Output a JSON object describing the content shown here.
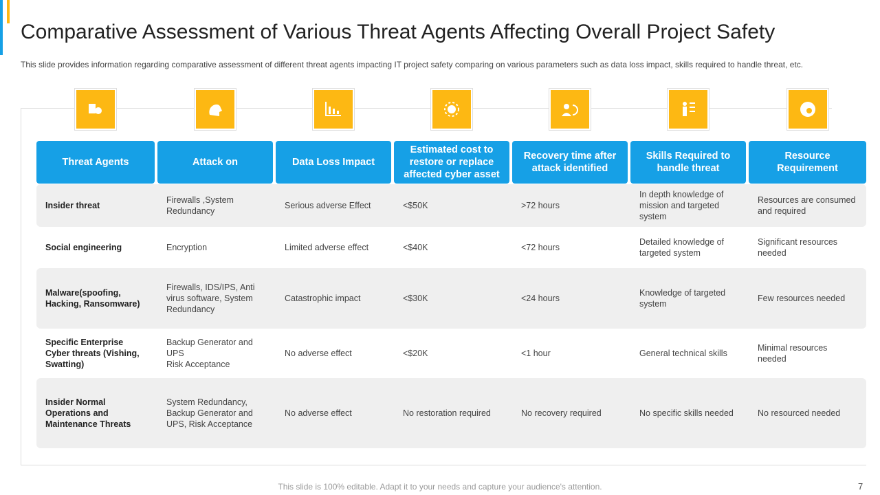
{
  "header": {
    "title": "Comparative Assessment of Various Threat Agents Affecting Overall Project Safety",
    "subtitle": "This slide provides information regarding comparative assessment of different threat agents impacting IT project safety comparing on various parameters such as data loss impact, skills required to handle threat, etc."
  },
  "table": {
    "columns": [
      "Threat Agents",
      "Attack on",
      "Data Loss Impact",
      "Estimated cost to restore or replace affected cyber asset",
      "Recovery time after attack identified",
      "Skills Required to handle threat",
      "Resource Requirement"
    ],
    "rows": [
      [
        "Insider threat",
        "Firewalls ,System Redundancy",
        "Serious adverse  Effect",
        "<$50K",
        ">72 hours",
        "In depth knowledge of mission and targeted system",
        "Resources are consumed and required"
      ],
      [
        "Social engineering",
        "Encryption",
        "Limited adverse  effect",
        "<$40K",
        "<72 hours",
        "Detailed knowledge of targeted system",
        "Significant resources needed"
      ],
      [
        "Malware(spoofing, Hacking, Ransomware)",
        "Firewalls, IDS/IPS, Anti virus software, System Redundancy",
        "Catastrophic impact",
        "<$30K",
        "<24 hours",
        "Knowledge of targeted system",
        "Few resources needed"
      ],
      [
        "Specific Enterprise Cyber threats (Vishing, Swatting)",
        "Backup Generator and UPS\nRisk Acceptance",
        "No adverse  effect",
        "<$20K",
        "<1 hour",
        "General technical skills",
        "Minimal resources needed"
      ],
      [
        "Insider Normal Operations and Maintenance Threats",
        "System Redundancy, Backup Generator and UPS, Risk Acceptance",
        "No adverse  effect",
        "No restoration required",
        "No recovery  required",
        "No specific skills needed",
        "No resourced needed"
      ]
    ]
  },
  "footer": {
    "note": "This slide is 100% editable. Adapt it to your needs and capture your audience's attention.",
    "page": "7"
  }
}
